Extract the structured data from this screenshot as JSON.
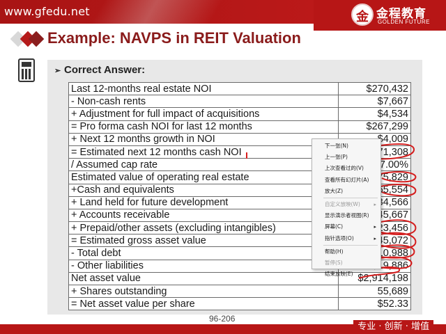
{
  "header": {
    "site_url": "www.gfedu.net",
    "logo_glyph": "金",
    "logo_cn": "金程教育",
    "logo_en": "GOLDEN FUTURE",
    "brand_color": "#b71616"
  },
  "slide": {
    "title": "Example: NAVPS in REIT Valuation",
    "title_color": "#8a1b1b",
    "answer_label": "Correct Answer:",
    "page_number": "96-206",
    "slogan": "专业 · 创新 · 增值"
  },
  "table": {
    "rows": [
      {
        "label": "Last 12-months real estate NOI",
        "value": "$270,432"
      },
      {
        "label": "- Non-cash rents",
        "value": "$7,667"
      },
      {
        "label": "+ Adjustment for full impact of acquisitions",
        "value": "$4,534"
      },
      {
        "label": "= Pro forma cash NOI for last 12 months",
        "value": "$267,299"
      },
      {
        "label": "+ Next 12 months growth in NOI",
        "value": "$4,009"
      },
      {
        "label": "= Estimated next 12 months cash NOI",
        "value": "$271,308"
      },
      {
        "label": "/ Assumed cap rate",
        "value": "7.00%"
      },
      {
        "label": "Estimated value of operating real estate",
        "value": "$3,875,829"
      },
      {
        "label": "+Cash and equivalents",
        "value": "$65,554"
      },
      {
        "label": "+ Land held for future development",
        "value": "$34,566"
      },
      {
        "label": "+ Accounts receivable",
        "value": "$45,667"
      },
      {
        "label": "+ Prepaid/other assets (excluding intangibles)",
        "value": "$23,456"
      },
      {
        "label": "= Estimated gross asset value",
        "value": "$4,045,072"
      },
      {
        "label": "- Total debt",
        "value": "$1,110,988"
      },
      {
        "label": "- Other liabilities",
        "value": "$19,886"
      },
      {
        "label": "Net asset value",
        "value": "$2,914,198"
      },
      {
        "label": "+ Shares outstanding",
        "value": "55,689"
      },
      {
        "label": "= Net asset value per share",
        "value": "$52.33"
      }
    ]
  },
  "context_menu": {
    "items": [
      {
        "label": "下一张(N)",
        "enabled": true,
        "submenu": false
      },
      {
        "label": "上一张(P)",
        "enabled": true,
        "submenu": false
      },
      {
        "label": "上次查看过的(V)",
        "enabled": true,
        "submenu": false
      },
      {
        "label": "查看所有幻灯片(A)",
        "enabled": true,
        "submenu": false
      },
      {
        "label": "放大(Z)",
        "enabled": true,
        "submenu": false
      },
      {
        "label": "自定义放映(W)",
        "enabled": false,
        "submenu": true
      },
      {
        "label": "显示演示者视图(R)",
        "enabled": true,
        "submenu": false
      },
      {
        "label": "屏幕(C)",
        "enabled": true,
        "submenu": true
      },
      {
        "label": "指针选项(O)",
        "enabled": true,
        "submenu": true
      },
      {
        "label": "帮助(H)",
        "enabled": true,
        "submenu": false
      },
      {
        "label": "暂停(S)",
        "enabled": false,
        "submenu": false
      },
      {
        "label": "结束放映(E)",
        "enabled": true,
        "submenu": false
      }
    ],
    "separators_after": [
      4,
      8
    ]
  },
  "annotation": {
    "ink_color": "#d41e1e"
  }
}
